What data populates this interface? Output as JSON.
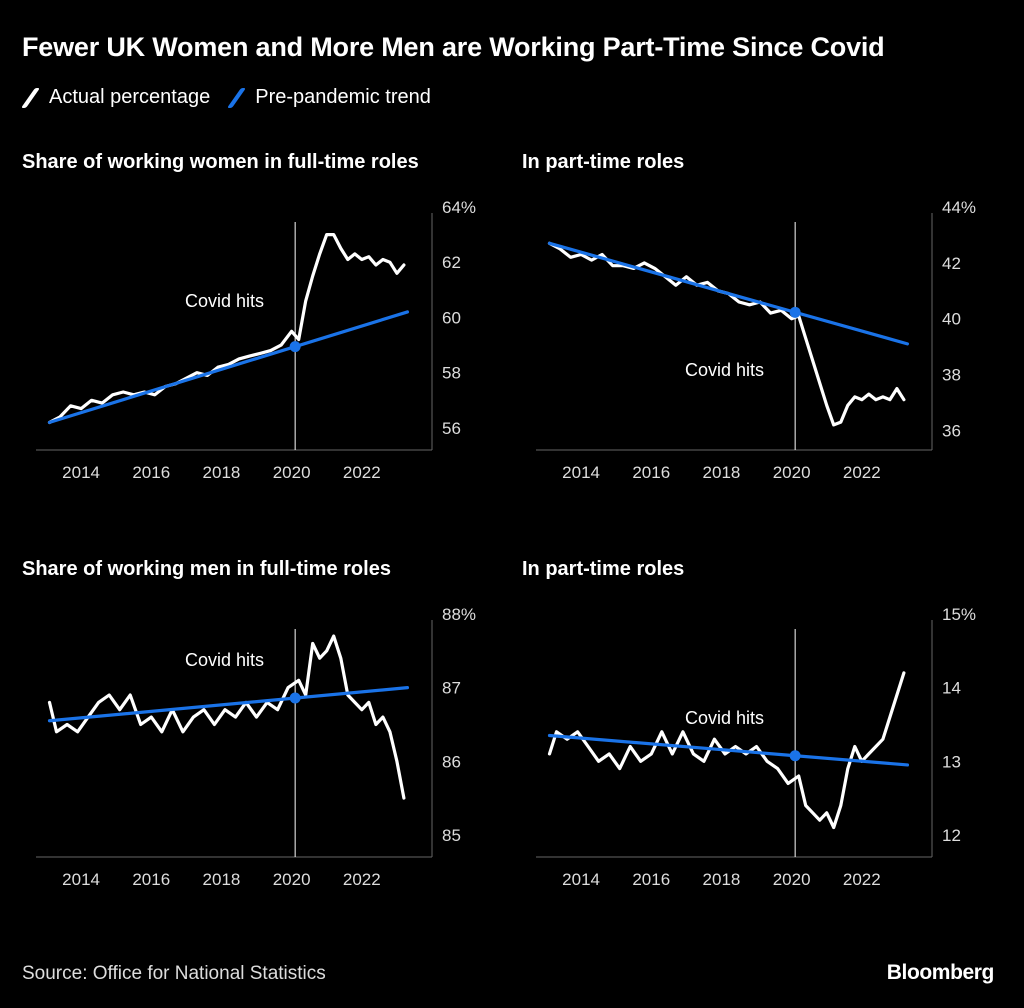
{
  "title": "Fewer UK Women and More Men are Working Part-Time Since Covid",
  "legend": [
    {
      "label": "Actual percentage",
      "color": "#ffffff"
    },
    {
      "label": "Pre-pandemic trend",
      "color": "#1a73e8"
    }
  ],
  "source": "Source: Office for National Statistics",
  "brand": "Bloomberg",
  "chart_data": [
    {
      "type": "line",
      "title": "Share of working women in full-time roles",
      "xlim": [
        2013.0,
        2024.0
      ],
      "xticks": [
        "2014",
        "2016",
        "2018",
        "2020",
        "2022"
      ],
      "ylim": [
        55.2,
        64
      ],
      "yticks": [
        "56",
        "58",
        "60",
        "62",
        "64%"
      ],
      "annotation": {
        "label": "Covid hits",
        "x": 2020.1
      },
      "series": [
        {
          "name": "Actual percentage",
          "x": [
            2013.1,
            2013.4,
            2013.7,
            2014.0,
            2014.3,
            2014.6,
            2014.9,
            2015.2,
            2015.5,
            2015.8,
            2016.1,
            2016.4,
            2016.7,
            2017.0,
            2017.3,
            2017.6,
            2017.9,
            2018.2,
            2018.5,
            2018.8,
            2019.1,
            2019.4,
            2019.7,
            2020.0,
            2020.2,
            2020.4,
            2020.6,
            2020.8,
            2021.0,
            2021.2,
            2021.4,
            2021.6,
            2021.8,
            2022.0,
            2022.2,
            2022.4,
            2022.6,
            2022.8,
            2023.0,
            2023.2
          ],
          "values": [
            56.2,
            56.4,
            56.8,
            56.7,
            57.0,
            56.9,
            57.2,
            57.3,
            57.2,
            57.3,
            57.2,
            57.5,
            57.6,
            57.8,
            58.0,
            57.9,
            58.2,
            58.3,
            58.5,
            58.6,
            58.7,
            58.8,
            59.0,
            59.5,
            59.2,
            60.6,
            61.5,
            62.3,
            63.0,
            63.0,
            62.5,
            62.1,
            62.3,
            62.1,
            62.2,
            61.9,
            62.1,
            62.0,
            61.6,
            61.9
          ]
        },
        {
          "name": "Pre-pandemic trend",
          "x": [
            2013.1,
            2023.3
          ],
          "values": [
            56.2,
            60.2
          ]
        }
      ]
    },
    {
      "type": "line",
      "title": "In part-time roles",
      "xlim": [
        2013.0,
        2024.0
      ],
      "xticks": [
        "2014",
        "2016",
        "2018",
        "2020",
        "2022"
      ],
      "ylim": [
        35.3,
        44
      ],
      "yticks": [
        "36",
        "38",
        "40",
        "42",
        "44%"
      ],
      "annotation": {
        "label": "Covid hits",
        "x": 2020.1
      },
      "series": [
        {
          "name": "Actual percentage",
          "x": [
            2013.1,
            2013.4,
            2013.7,
            2014.0,
            2014.3,
            2014.6,
            2014.9,
            2015.2,
            2015.5,
            2015.8,
            2016.1,
            2016.4,
            2016.7,
            2017.0,
            2017.3,
            2017.6,
            2017.9,
            2018.2,
            2018.5,
            2018.8,
            2019.1,
            2019.4,
            2019.7,
            2020.0,
            2020.2,
            2020.4,
            2020.6,
            2020.8,
            2021.0,
            2021.2,
            2021.4,
            2021.6,
            2021.8,
            2022.0,
            2022.2,
            2022.4,
            2022.6,
            2022.8,
            2023.0,
            2023.2
          ],
          "values": [
            42.7,
            42.5,
            42.2,
            42.3,
            42.1,
            42.3,
            41.9,
            41.9,
            41.8,
            42.0,
            41.8,
            41.5,
            41.2,
            41.5,
            41.2,
            41.3,
            41.0,
            40.9,
            40.6,
            40.5,
            40.6,
            40.2,
            40.3,
            40.0,
            40.1,
            39.3,
            38.5,
            37.7,
            36.9,
            36.2,
            36.3,
            36.9,
            37.2,
            37.1,
            37.3,
            37.1,
            37.2,
            37.1,
            37.5,
            37.1
          ]
        },
        {
          "name": "Pre-pandemic trend",
          "x": [
            2013.1,
            2023.3
          ],
          "values": [
            42.7,
            39.1
          ]
        }
      ]
    },
    {
      "type": "line",
      "title": "Share of working men in full-time roles",
      "xlim": [
        2013.0,
        2024.0
      ],
      "xticks": [
        "2014",
        "2016",
        "2018",
        "2020",
        "2022"
      ],
      "ylim": [
        84.7,
        88
      ],
      "yticks": [
        "85",
        "86",
        "87",
        "88%"
      ],
      "annotation": {
        "label": "Covid hits",
        "x": 2020.1
      },
      "series": [
        {
          "name": "Actual percentage",
          "x": [
            2013.1,
            2013.3,
            2013.6,
            2013.9,
            2014.2,
            2014.5,
            2014.8,
            2015.1,
            2015.4,
            2015.7,
            2016.0,
            2016.3,
            2016.6,
            2016.9,
            2017.2,
            2017.5,
            2017.8,
            2018.1,
            2018.4,
            2018.7,
            2019.0,
            2019.3,
            2019.6,
            2019.9,
            2020.2,
            2020.4,
            2020.6,
            2020.8,
            2021.0,
            2021.2,
            2021.4,
            2021.6,
            2021.8,
            2022.0,
            2022.2,
            2022.4,
            2022.6,
            2022.8,
            2023.0,
            2023.2
          ],
          "values": [
            86.8,
            86.4,
            86.5,
            86.4,
            86.6,
            86.8,
            86.9,
            86.7,
            86.9,
            86.5,
            86.6,
            86.4,
            86.7,
            86.4,
            86.6,
            86.7,
            86.5,
            86.7,
            86.6,
            86.8,
            86.6,
            86.8,
            86.7,
            87.0,
            87.1,
            86.9,
            87.6,
            87.4,
            87.5,
            87.7,
            87.4,
            86.9,
            86.8,
            86.7,
            86.8,
            86.5,
            86.6,
            86.4,
            86.0,
            85.5
          ]
        },
        {
          "name": "Pre-pandemic trend",
          "x": [
            2013.1,
            2023.3
          ],
          "values": [
            86.55,
            87.0
          ]
        }
      ]
    },
    {
      "type": "line",
      "title": "In part-time roles",
      "xlim": [
        2013.0,
        2024.0
      ],
      "xticks": [
        "2014",
        "2016",
        "2018",
        "2020",
        "2022"
      ],
      "ylim": [
        11.7,
        15
      ],
      "yticks": [
        "12",
        "13",
        "14",
        "15%"
      ],
      "annotation": {
        "label": "Covid hits",
        "x": 2020.1
      },
      "series": [
        {
          "name": "Actual percentage",
          "x": [
            2013.1,
            2013.3,
            2013.6,
            2013.9,
            2014.2,
            2014.5,
            2014.8,
            2015.1,
            2015.4,
            2015.7,
            2016.0,
            2016.3,
            2016.6,
            2016.9,
            2017.2,
            2017.5,
            2017.8,
            2018.1,
            2018.4,
            2018.7,
            2019.0,
            2019.3,
            2019.6,
            2019.9,
            2020.2,
            2020.4,
            2020.6,
            2020.8,
            2021.0,
            2021.2,
            2021.4,
            2021.6,
            2021.8,
            2022.0,
            2022.2,
            2022.4,
            2022.6,
            2022.8,
            2023.0,
            2023.2
          ],
          "values": [
            13.1,
            13.4,
            13.3,
            13.4,
            13.2,
            13.0,
            13.1,
            12.9,
            13.2,
            13.0,
            13.1,
            13.4,
            13.1,
            13.4,
            13.1,
            13.0,
            13.3,
            13.1,
            13.2,
            13.1,
            13.2,
            13.0,
            12.9,
            12.7,
            12.8,
            12.4,
            12.3,
            12.2,
            12.3,
            12.1,
            12.4,
            12.9,
            13.2,
            13.0,
            13.1,
            13.2,
            13.3,
            13.6,
            13.9,
            14.2
          ]
        },
        {
          "name": "Pre-pandemic trend",
          "x": [
            2013.1,
            2023.3
          ],
          "values": [
            13.35,
            12.95
          ]
        }
      ]
    }
  ]
}
